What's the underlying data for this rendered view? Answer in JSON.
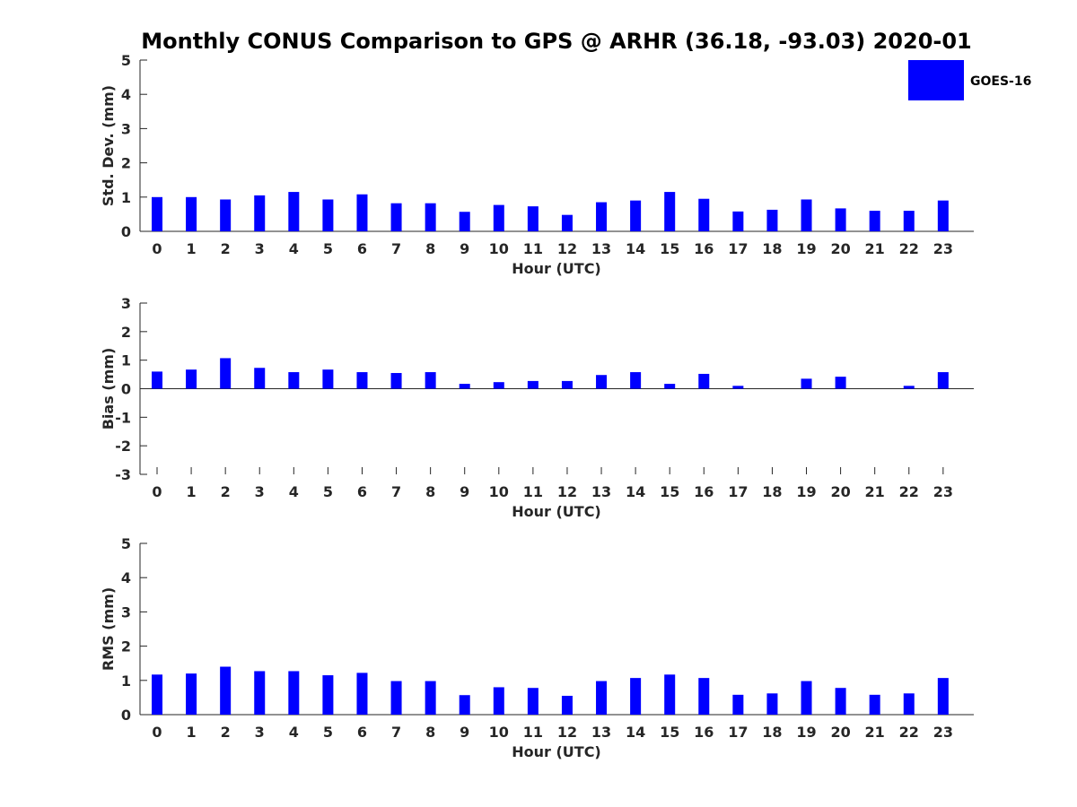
{
  "title": "Monthly CONUS Comparison to GPS @ ARHR (36.18, -93.03) 2020-01",
  "legend": {
    "label": "GOES-16",
    "color": "#0000ff",
    "placement": "top-right"
  },
  "chart_data": [
    {
      "type": "bar",
      "name": "std_dev",
      "xlabel": "Hour (UTC)",
      "ylabel": "Std. Dev. (mm)",
      "ylim": [
        0,
        5
      ],
      "yticks": [
        0,
        1,
        2,
        3,
        4,
        5
      ],
      "categories": [
        "0",
        "1",
        "2",
        "3",
        "4",
        "5",
        "6",
        "7",
        "8",
        "9",
        "10",
        "11",
        "12",
        "13",
        "14",
        "15",
        "16",
        "17",
        "18",
        "19",
        "20",
        "21",
        "22",
        "23"
      ],
      "series": [
        {
          "name": "GOES-16",
          "values": [
            1.0,
            1.0,
            0.93,
            1.05,
            1.15,
            0.93,
            1.08,
            0.82,
            0.82,
            0.57,
            0.77,
            0.73,
            0.48,
            0.85,
            0.9,
            1.15,
            0.95,
            0.58,
            0.63,
            0.93,
            0.67,
            0.6,
            0.6,
            0.9
          ]
        }
      ]
    },
    {
      "type": "bar",
      "name": "bias",
      "xlabel": "Hour (UTC)",
      "ylabel": "Bias (mm)",
      "ylim": [
        -3,
        3
      ],
      "yticks": [
        -3,
        -2,
        -1,
        0,
        1,
        2,
        3
      ],
      "categories": [
        "0",
        "1",
        "2",
        "3",
        "4",
        "5",
        "6",
        "7",
        "8",
        "9",
        "10",
        "11",
        "12",
        "13",
        "14",
        "15",
        "16",
        "17",
        "18",
        "19",
        "20",
        "21",
        "22",
        "23"
      ],
      "series": [
        {
          "name": "GOES-16",
          "values": [
            0.6,
            0.67,
            1.07,
            0.73,
            0.58,
            0.67,
            0.58,
            0.55,
            0.58,
            0.17,
            0.23,
            0.27,
            0.27,
            0.48,
            0.58,
            0.17,
            0.52,
            0.1,
            0.0,
            0.35,
            0.42,
            0.0,
            0.1,
            0.58
          ]
        }
      ]
    },
    {
      "type": "bar",
      "name": "rms",
      "xlabel": "Hour (UTC)",
      "ylabel": "RMS (mm)",
      "ylim": [
        0,
        5
      ],
      "yticks": [
        0,
        1,
        2,
        3,
        4,
        5
      ],
      "categories": [
        "0",
        "1",
        "2",
        "3",
        "4",
        "5",
        "6",
        "7",
        "8",
        "9",
        "10",
        "11",
        "12",
        "13",
        "14",
        "15",
        "16",
        "17",
        "18",
        "19",
        "20",
        "21",
        "22",
        "23"
      ],
      "series": [
        {
          "name": "GOES-16",
          "values": [
            1.17,
            1.2,
            1.4,
            1.27,
            1.27,
            1.15,
            1.22,
            0.98,
            0.98,
            0.57,
            0.8,
            0.78,
            0.55,
            0.98,
            1.07,
            1.17,
            1.07,
            0.58,
            0.62,
            0.98,
            0.78,
            0.58,
            0.62,
            1.07
          ]
        }
      ]
    }
  ]
}
